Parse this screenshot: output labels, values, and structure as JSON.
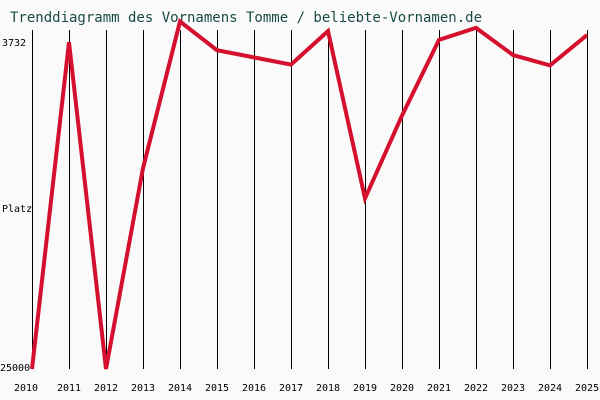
{
  "chart_data": {
    "type": "line",
    "title": "Trenddiagramm des Vornamens Tomme / beliebte-Vornamen.de",
    "ylabel": "Platz",
    "y_top_label": "3732",
    "y_bottom_label": "25000",
    "ylim": [
      3732,
      25000
    ],
    "y_inverted": true,
    "grid": "vertical",
    "x": [
      2010,
      2011,
      2012,
      2013,
      2014,
      2015,
      2016,
      2017,
      2018,
      2019,
      2020,
      2021,
      2022,
      2023,
      2024,
      2025
    ],
    "x_tick_labels": [
      "2010",
      "2011",
      "2012",
      "2013",
      "2014",
      "2015",
      "2016",
      "2017",
      "2018",
      "2019",
      "2020",
      "2021",
      "2022",
      "2023",
      "2024",
      "2025"
    ],
    "series": [
      {
        "values": [
          25000,
          4500,
          25000,
          12400,
          3200,
          5000,
          5450,
          5900,
          3800,
          14300,
          9100,
          4350,
          3600,
          5300,
          5950,
          4050
        ],
        "color": "#d4102e"
      }
    ],
    "colors": {
      "title": "#1a4a47",
      "gridline": "#000000",
      "background": "#fafafa"
    }
  }
}
